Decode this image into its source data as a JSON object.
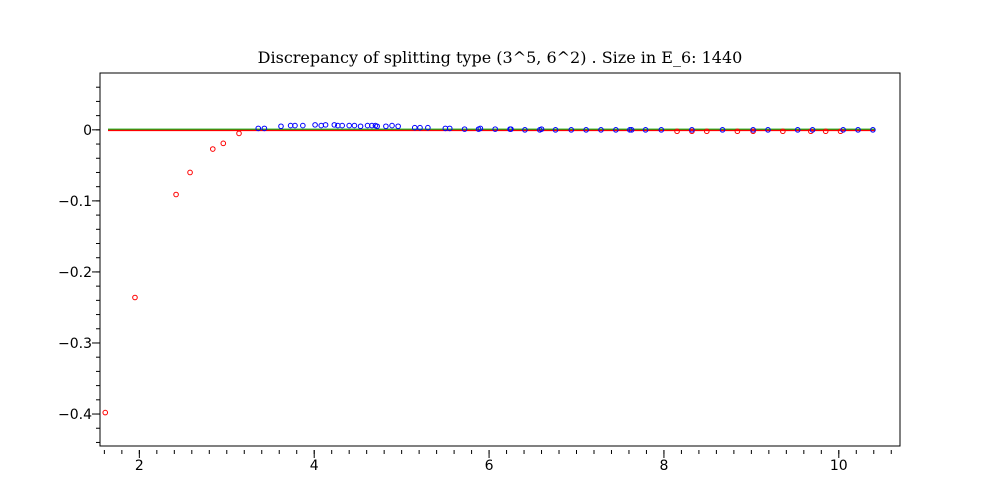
{
  "chart_data": {
    "type": "scatter",
    "title": "Discrepancy of splitting type (3^5, 6^2) .  Size in E_6: 1440",
    "xlabel": "",
    "ylabel": "",
    "xlim": [
      1.55,
      10.7
    ],
    "ylim": [
      -0.445,
      0.08
    ],
    "x_ticks": [
      2,
      4,
      6,
      8,
      10
    ],
    "x_tick_labels": [
      "2",
      "4",
      "6",
      "8",
      "10"
    ],
    "y_ticks": [
      0,
      -0.1,
      -0.2,
      -0.3,
      -0.4
    ],
    "y_tick_labels": [
      "0",
      "−0.1",
      "−0.2",
      "−0.3",
      "−0.4"
    ],
    "grid": false,
    "legend": "none",
    "reference_lines": [
      {
        "y": 0,
        "color": "#00aa00"
      },
      {
        "y": 0,
        "color": "#ff0000"
      }
    ],
    "series": [
      {
        "color": "#ff0000",
        "marker": "open-circle",
        "points": [
          [
            1.61,
            -0.398
          ],
          [
            1.95,
            -0.236
          ],
          [
            2.42,
            -0.091
          ],
          [
            2.58,
            -0.06
          ],
          [
            2.84,
            -0.027
          ],
          [
            2.96,
            -0.019
          ],
          [
            3.14,
            -0.005
          ],
          [
            8.15,
            -0.002
          ],
          [
            8.32,
            -0.002
          ],
          [
            8.49,
            -0.002
          ],
          [
            8.84,
            -0.002
          ],
          [
            9.02,
            -0.002
          ],
          [
            9.36,
            -0.002
          ],
          [
            9.68,
            -0.002
          ],
          [
            9.85,
            -0.002
          ],
          [
            10.02,
            -0.002
          ]
        ]
      },
      {
        "color": "#0000ff",
        "marker": "open-circle",
        "points": [
          [
            3.36,
            0.002
          ],
          [
            3.43,
            0.002
          ],
          [
            3.62,
            0.005
          ],
          [
            3.73,
            0.006
          ],
          [
            3.78,
            0.006
          ],
          [
            3.87,
            0.006
          ],
          [
            4.01,
            0.007
          ],
          [
            4.08,
            0.006
          ],
          [
            4.13,
            0.007
          ],
          [
            4.23,
            0.007
          ],
          [
            4.27,
            0.006
          ],
          [
            4.32,
            0.006
          ],
          [
            4.4,
            0.006
          ],
          [
            4.46,
            0.006
          ],
          [
            4.53,
            0.005
          ],
          [
            4.61,
            0.006
          ],
          [
            4.66,
            0.006
          ],
          [
            4.7,
            0.006
          ],
          [
            4.72,
            0.005
          ],
          [
            4.82,
            0.005
          ],
          [
            4.89,
            0.006
          ],
          [
            4.96,
            0.005
          ],
          [
            5.15,
            0.003
          ],
          [
            5.21,
            0.003
          ],
          [
            5.3,
            0.003
          ],
          [
            5.5,
            0.002
          ],
          [
            5.55,
            0.002
          ],
          [
            5.72,
            0.001
          ],
          [
            5.88,
            0.001
          ],
          [
            5.9,
            0.002
          ],
          [
            6.07,
            0.001
          ],
          [
            6.24,
            0.001
          ],
          [
            6.25,
            0.001
          ],
          [
            6.41,
            0.0
          ],
          [
            6.58,
            0.0
          ],
          [
            6.6,
            0.001
          ],
          [
            6.76,
            0.0
          ],
          [
            6.94,
            0.0
          ],
          [
            7.11,
            0.0
          ],
          [
            7.28,
            0.0
          ],
          [
            7.45,
            0.0
          ],
          [
            7.61,
            0.0
          ],
          [
            7.63,
            0.0
          ],
          [
            7.79,
            0.0
          ],
          [
            7.97,
            0.0
          ],
          [
            8.32,
            0.0
          ],
          [
            8.67,
            0.0
          ],
          [
            9.02,
            0.0
          ],
          [
            9.19,
            0.0
          ],
          [
            9.53,
            0.0
          ],
          [
            9.7,
            0.0
          ],
          [
            10.05,
            0.0
          ],
          [
            10.22,
            0.0
          ],
          [
            10.39,
            0.0
          ]
        ]
      }
    ]
  }
}
